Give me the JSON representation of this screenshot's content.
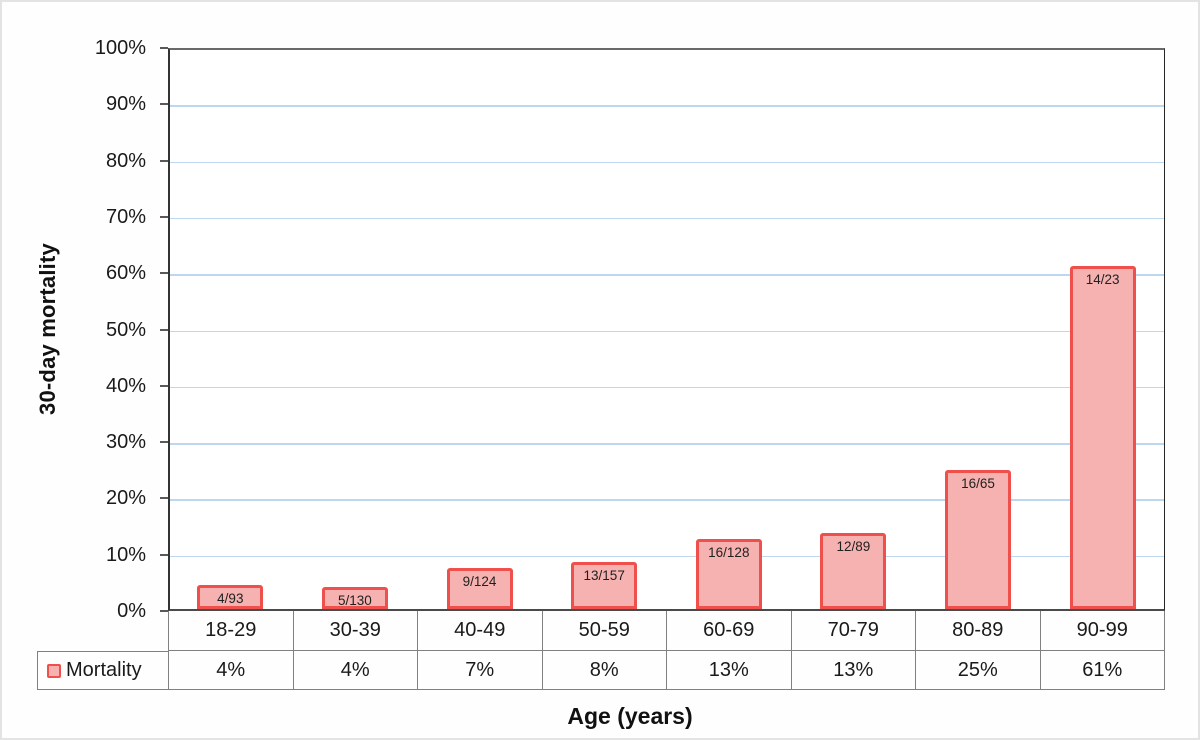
{
  "page": {
    "background": "#FEFEFE",
    "frame_border_color": "#E3E3E3"
  },
  "chart_data": {
    "type": "bar",
    "title": "",
    "xlabel": "Age (years)",
    "ylabel": "30-day mortality",
    "ylim": [
      0,
      100
    ],
    "ytick_step": 10,
    "ytick_labels": [
      "0%",
      "10%",
      "20%",
      "30%",
      "40%",
      "50%",
      "60%",
      "70%",
      "80%",
      "90%",
      "100%"
    ],
    "grid": "horizontal",
    "legend_position": "table-row-header",
    "categories": [
      "18-29",
      "30-39",
      "40-49",
      "50-59",
      "60-69",
      "70-79",
      "80-89",
      "90-99"
    ],
    "series": [
      {
        "name": "Mortality",
        "values_pct": [
          4.3,
          3.85,
          7.26,
          8.28,
          12.5,
          13.48,
          24.62,
          60.87
        ],
        "bar_labels": [
          "4/93",
          "5/130",
          "9/124",
          "13/157",
          "16/128",
          "12/89",
          "16/65",
          "14/23"
        ],
        "table_row_values": [
          "4%",
          "4%",
          "7%",
          "8%",
          "13%",
          "13%",
          "25%",
          "61%"
        ]
      }
    ],
    "colors": {
      "bar_fill": "#F6B2B0",
      "bar_border": "#EF504B",
      "gridline": "#BDD7EE",
      "axis_left": "#333333",
      "axis_bottom": "#4A4A4A",
      "plot_top_border": "#696969",
      "plot_right_border": "#262626",
      "tick_mark": "#595959",
      "table_border": "#808080",
      "text": "#1A1A1A"
    }
  }
}
